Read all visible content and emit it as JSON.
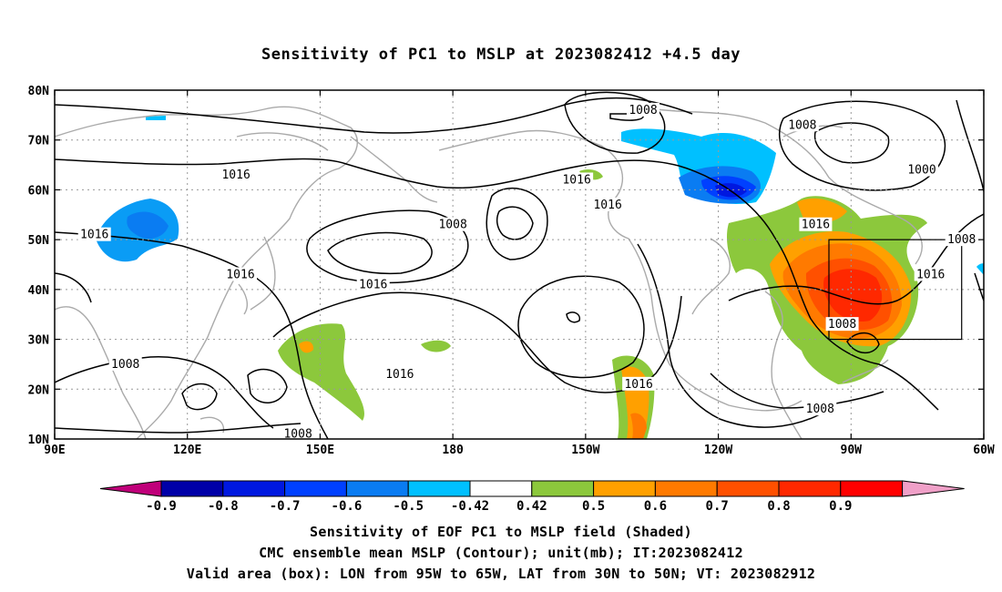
{
  "title": "Sensitivity of PC1 to MSLP at 2023082412 +4.5 day",
  "map": {
    "lon_range": [
      90,
      300
    ],
    "lat_range": [
      10,
      80
    ],
    "lon_ticks": [
      {
        "lon": 90,
        "label": "90E"
      },
      {
        "lon": 120,
        "label": "120E"
      },
      {
        "lon": 150,
        "label": "150E"
      },
      {
        "lon": 180,
        "label": "180"
      },
      {
        "lon": 210,
        "label": "150W"
      },
      {
        "lon": 240,
        "label": "120W"
      },
      {
        "lon": 270,
        "label": "90W"
      },
      {
        "lon": 300,
        "label": "60W"
      }
    ],
    "lat_ticks": [
      {
        "lat": 10,
        "label": "10N"
      },
      {
        "lat": 20,
        "label": "20N"
      },
      {
        "lat": 30,
        "label": "30N"
      },
      {
        "lat": 40,
        "label": "40N"
      },
      {
        "lat": 50,
        "label": "50N"
      },
      {
        "lat": 60,
        "label": "60N"
      },
      {
        "lat": 70,
        "label": "70N"
      },
      {
        "lat": 80,
        "label": "80N"
      }
    ],
    "box": {
      "lon_min": 265,
      "lon_max": 295,
      "lat_min": 30,
      "lat_max": 50
    },
    "contour_labels": [
      {
        "text": "1008",
        "lon": 223,
        "lat": 76
      },
      {
        "text": "1008",
        "lon": 259,
        "lat": 73
      },
      {
        "text": "1000",
        "lon": 286,
        "lat": 64
      },
      {
        "text": "1016",
        "lon": 131,
        "lat": 63
      },
      {
        "text": "1016",
        "lon": 208,
        "lat": 62
      },
      {
        "text": "1016",
        "lon": 215,
        "lat": 57
      },
      {
        "text": "1016",
        "lon": 99,
        "lat": 51
      },
      {
        "text": "1008",
        "lon": 180,
        "lat": 53
      },
      {
        "text": "1016",
        "lon": 132,
        "lat": 43
      },
      {
        "text": "1016",
        "lon": 162,
        "lat": 41
      },
      {
        "text": "1016",
        "lon": 262,
        "lat": 53
      },
      {
        "text": "1008",
        "lon": 295,
        "lat": 50
      },
      {
        "text": "1016",
        "lon": 288,
        "lat": 43
      },
      {
        "text": "1008",
        "lon": 268,
        "lat": 33
      },
      {
        "text": "1008",
        "lon": 106,
        "lat": 25
      },
      {
        "text": "1016",
        "lon": 168,
        "lat": 23
      },
      {
        "text": "1016",
        "lon": 222,
        "lat": 21
      },
      {
        "text": "1008",
        "lon": 263,
        "lat": 16
      },
      {
        "text": "1008",
        "lon": 145,
        "lat": 11
      }
    ],
    "colors": {
      "c_neg09": "#c0007a",
      "c_neg08": "#0000a8",
      "c_neg07": "#0018e0",
      "c_neg06": "#0040ff",
      "c_neg05": "#0a7cf2",
      "c_neg042": "#00c0ff",
      "c_white": "#ffffff",
      "c_042": "#8cc83c",
      "c_05": "#ffa000",
      "c_06": "#ff7a00",
      "c_07": "#ff5000",
      "c_08": "#ff2800",
      "c_09": "#ff0000",
      "c_over": "#f0a0c8"
    }
  },
  "colorbar": {
    "labels": [
      "-0.9",
      "-0.8",
      "-0.7",
      "-0.6",
      "-0.5",
      "-0.42",
      "0.42",
      "0.5",
      "0.6",
      "0.7",
      "0.8",
      "0.9"
    ]
  },
  "footer": {
    "line1": "Sensitivity of EOF PC1 to MSLP field (Shaded)",
    "line2": "CMC ensemble mean MSLP (Contour); unit(mb); IT:2023082412",
    "line3": "Valid area (box): LON from 95W to 65W, LAT from 30N to 50N; VT: 2023082912"
  }
}
